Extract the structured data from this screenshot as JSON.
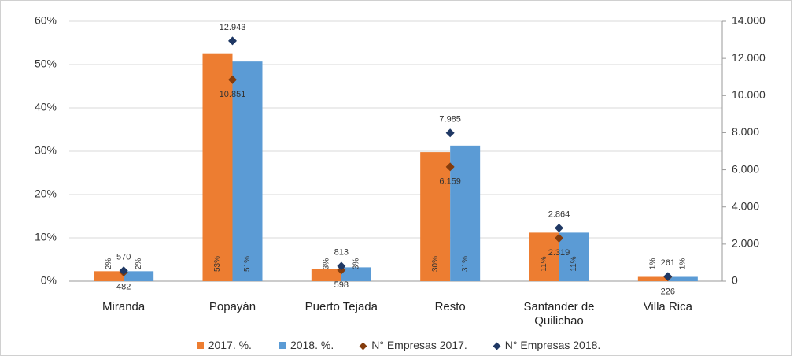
{
  "chart_data": {
    "type": "bar",
    "categories": [
      "Miranda",
      "Popayán",
      "Puerto Tejada",
      "Resto",
      "Santander de Quilichao",
      "Villa Rica"
    ],
    "series": [
      {
        "name": "2017. %.",
        "type": "bar",
        "color": "#ed7d31",
        "values": [
          2.3,
          52.6,
          2.8,
          29.8,
          11.2,
          1.0
        ],
        "value_labels": [
          "2%",
          "53%",
          "3%",
          "30%",
          "11%",
          "1%"
        ]
      },
      {
        "name": "2018. %.",
        "type": "bar",
        "color": "#5b9bd5",
        "values": [
          2.3,
          50.7,
          3.2,
          31.3,
          11.2,
          1.0
        ],
        "value_labels": [
          "2%",
          "51%",
          "3%",
          "31%",
          "11%",
          "1%"
        ]
      },
      {
        "name": "N° Empresas 2017.",
        "type": "scatter",
        "axis": "y2",
        "color": "#843c0c",
        "values": [
          482,
          10851,
          598,
          6159,
          2319,
          226
        ],
        "value_labels": [
          "482",
          "10.851",
          "598",
          "6.159",
          "2.319",
          "226"
        ]
      },
      {
        "name": "N° Empresas 2018.",
        "type": "scatter",
        "axis": "y2",
        "color": "#1f3864",
        "values": [
          570,
          12943,
          813,
          7985,
          2864,
          261
        ],
        "value_labels": [
          "570",
          "12.943",
          "813",
          "7.985",
          "2.864",
          "261"
        ]
      }
    ],
    "ylim": [
      0,
      60
    ],
    "yticks": [
      {
        "value": 0,
        "label": "0%"
      },
      {
        "value": 10,
        "label": "10%"
      },
      {
        "value": 20,
        "label": "20%"
      },
      {
        "value": 30,
        "label": "30%"
      },
      {
        "value": 40,
        "label": "40%"
      },
      {
        "value": 50,
        "label": "50%"
      },
      {
        "value": 60,
        "label": "60%"
      }
    ],
    "y2lim": [
      0,
      14000
    ],
    "y2ticks": [
      0,
      {
        "value": 2000,
        "label": "2.000"
      },
      {
        "value": 4000,
        "label": "4.000"
      },
      {
        "value": 6000,
        "label": "6.000"
      },
      {
        "value": 8000,
        "label": "8.000"
      },
      {
        "value": 10000,
        "label": "10.000"
      },
      {
        "value": 12000,
        "label": "12.000"
      },
      {
        "value": 14000,
        "label": "14.000"
      }
    ],
    "grid": true,
    "legend": "bottom"
  }
}
